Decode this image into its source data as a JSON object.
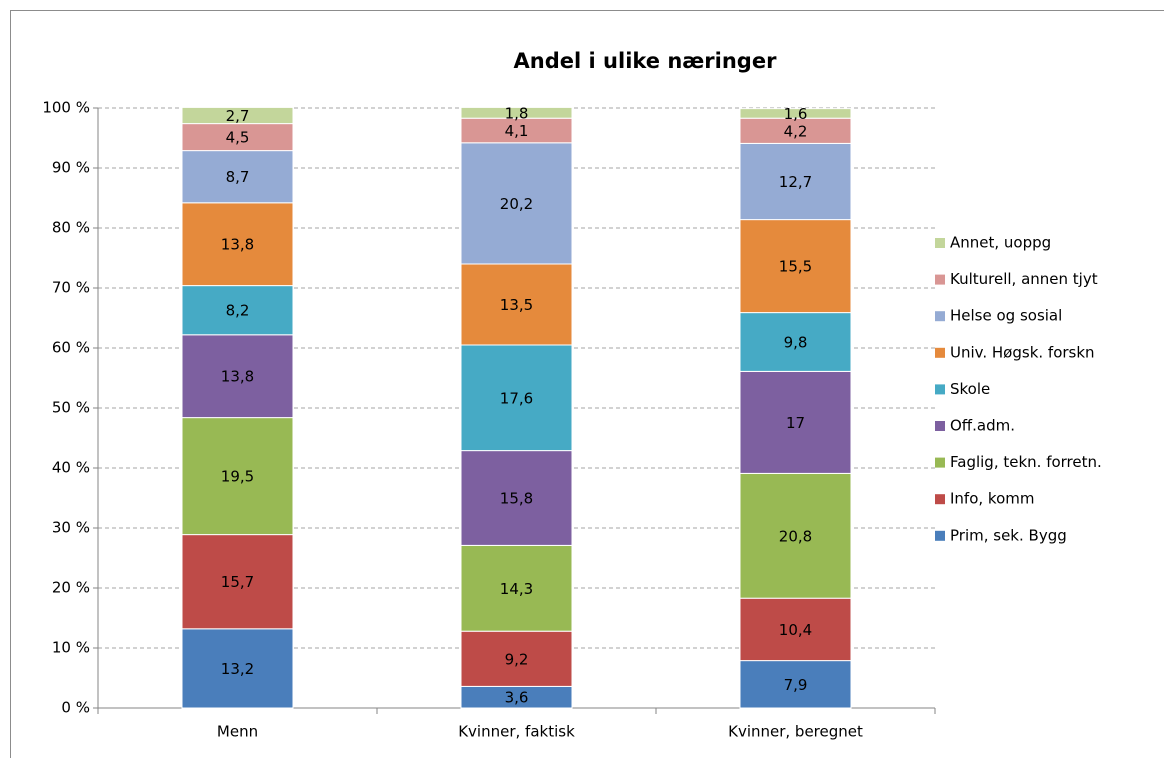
{
  "chart_data": {
    "type": "stacked_bar",
    "title": "Andel i ulike næringer",
    "categories": [
      "Menn",
      "Kvinner, faktisk",
      "Kvinner, beregnet"
    ],
    "series": [
      {
        "name": "Prim, sek. Bygg",
        "color": "#4a7ebb",
        "values": [
          13.2,
          3.6,
          7.9
        ],
        "value_labels": [
          "13,2",
          "3,6",
          "7,9"
        ]
      },
      {
        "name": "Info, komm",
        "color": "#be4b48",
        "values": [
          15.7,
          9.2,
          10.4
        ],
        "value_labels": [
          "15,7",
          "9,2",
          "10,4"
        ]
      },
      {
        "name": "Faglig, tekn. forretn.",
        "color": "#98b954",
        "values": [
          19.5,
          14.3,
          20.8
        ],
        "value_labels": [
          "19,5",
          "14,3",
          "20,8"
        ]
      },
      {
        "name": "Off.adm.",
        "color": "#7d60a0",
        "values": [
          13.8,
          15.8,
          17
        ],
        "value_labels": [
          "13,8",
          "15,8",
          "17"
        ]
      },
      {
        "name": "Skole",
        "color": "#46aac5",
        "values": [
          8.2,
          17.6,
          9.8
        ],
        "value_labels": [
          "8,2",
          "17,6",
          "9,8"
        ]
      },
      {
        "name": "Univ. Høgsk. forskn",
        "color": "#e58a3c",
        "values": [
          13.8,
          13.5,
          15.5
        ],
        "value_labels": [
          "13,8",
          "13,5",
          "15,5"
        ]
      },
      {
        "name": "Helse og sosial",
        "color": "#95abd4",
        "values": [
          8.7,
          20.2,
          12.7
        ],
        "value_labels": [
          "8,7",
          "20,2",
          "12,7"
        ]
      },
      {
        "name": "Kulturell, annen tjyt",
        "color": "#d99694",
        "values": [
          4.5,
          4.1,
          4.2
        ],
        "value_labels": [
          "4,5",
          "4,1",
          "4,2"
        ]
      },
      {
        "name": "Annet, uoppg",
        "color": "#c3d69b",
        "values": [
          2.7,
          1.8,
          1.6
        ],
        "value_labels": [
          "2,7",
          "1,8",
          "1,6"
        ]
      }
    ],
    "ylim": [
      0,
      100
    ],
    "yticks": [
      {
        "value": 0,
        "label": "0 %"
      },
      {
        "value": 10,
        "label": "10 %"
      },
      {
        "value": 20,
        "label": "20 %"
      },
      {
        "value": 30,
        "label": "30 %"
      },
      {
        "value": 40,
        "label": "40 %"
      },
      {
        "value": 50,
        "label": "50 %"
      },
      {
        "value": 60,
        "label": "60 %"
      },
      {
        "value": 70,
        "label": "70 %"
      },
      {
        "value": 80,
        "label": "80 %"
      },
      {
        "value": 90,
        "label": "90 %"
      },
      {
        "value": 100,
        "label": "100 %"
      }
    ],
    "grid": true,
    "legend": "right"
  }
}
